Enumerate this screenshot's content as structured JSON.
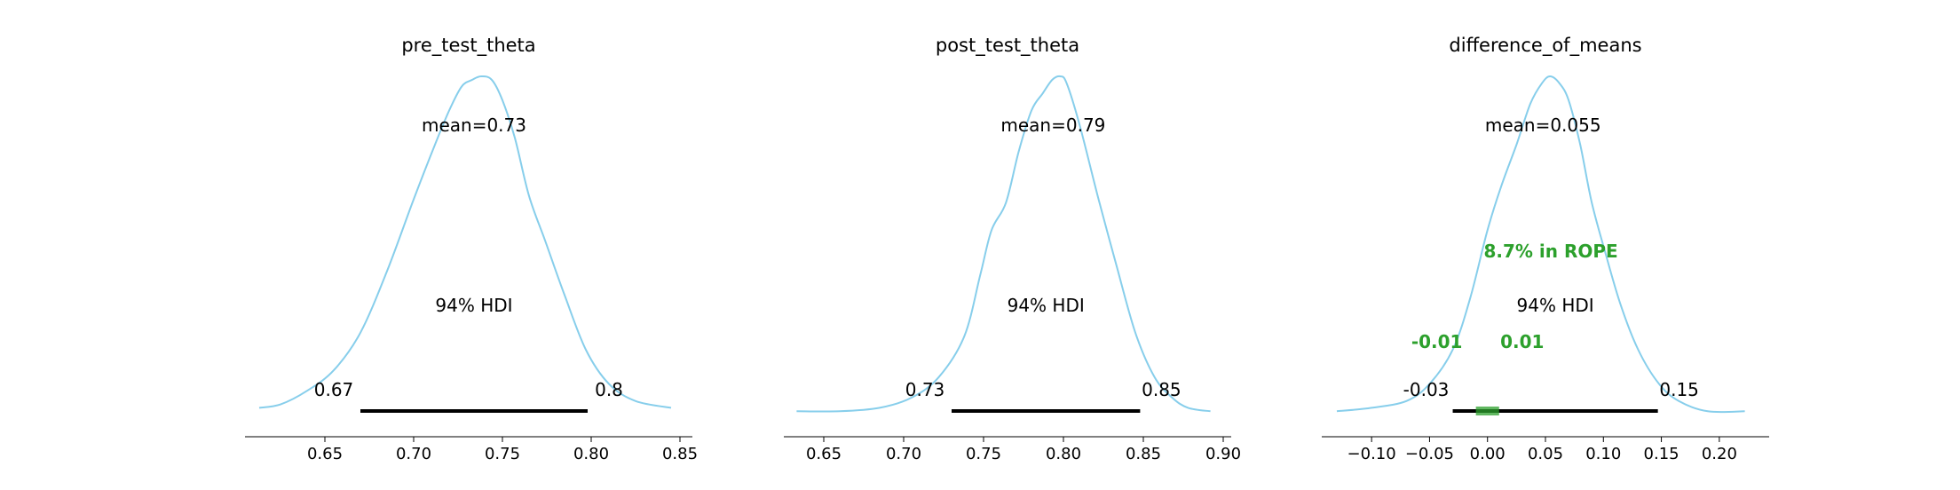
{
  "chart_data": [
    {
      "type": "area",
      "title": "pre_test_theta",
      "xlim": [
        0.605,
        0.857
      ],
      "xticks": [
        0.65,
        0.7,
        0.75,
        0.8,
        0.85
      ],
      "xtick_labels": [
        "0.65",
        "0.70",
        "0.75",
        "0.80",
        "0.85"
      ],
      "mean_label": "mean=0.73",
      "hdi_label": "94% HDI",
      "hdi": [
        0.67,
        0.798
      ],
      "hdi_low_label": "0.67",
      "hdi_high_label": "0.8",
      "color": "#87ceeb",
      "density_points": [
        [
          0.613,
          0.03
        ],
        [
          0.625,
          0.04
        ],
        [
          0.64,
          0.08
        ],
        [
          0.655,
          0.14
        ],
        [
          0.67,
          0.25
        ],
        [
          0.685,
          0.43
        ],
        [
          0.7,
          0.64
        ],
        [
          0.712,
          0.8
        ],
        [
          0.72,
          0.9
        ],
        [
          0.727,
          0.97
        ],
        [
          0.733,
          0.99
        ],
        [
          0.738,
          1.0
        ],
        [
          0.744,
          0.99
        ],
        [
          0.75,
          0.93
        ],
        [
          0.757,
          0.82
        ],
        [
          0.765,
          0.65
        ],
        [
          0.774,
          0.52
        ],
        [
          0.785,
          0.36
        ],
        [
          0.797,
          0.2
        ],
        [
          0.81,
          0.1
        ],
        [
          0.825,
          0.05
        ],
        [
          0.845,
          0.03
        ]
      ]
    },
    {
      "type": "area",
      "title": "post_test_theta",
      "xlim": [
        0.625,
        0.905
      ],
      "xticks": [
        0.65,
        0.7,
        0.75,
        0.8,
        0.85,
        0.9
      ],
      "xtick_labels": [
        "0.65",
        "0.70",
        "0.75",
        "0.80",
        "0.85",
        "0.90"
      ],
      "mean_label": "mean=0.79",
      "hdi_label": "94% HDI",
      "hdi": [
        0.73,
        0.848
      ],
      "hdi_low_label": "0.73",
      "hdi_high_label": "0.85",
      "color": "#87ceeb",
      "density_points": [
        [
          0.633,
          0.02
        ],
        [
          0.66,
          0.02
        ],
        [
          0.685,
          0.03
        ],
        [
          0.705,
          0.06
        ],
        [
          0.722,
          0.12
        ],
        [
          0.738,
          0.24
        ],
        [
          0.748,
          0.42
        ],
        [
          0.755,
          0.55
        ],
        [
          0.764,
          0.63
        ],
        [
          0.772,
          0.78
        ],
        [
          0.78,
          0.9
        ],
        [
          0.787,
          0.95
        ],
        [
          0.793,
          0.99
        ],
        [
          0.798,
          1.0
        ],
        [
          0.802,
          0.98
        ],
        [
          0.81,
          0.86
        ],
        [
          0.822,
          0.64
        ],
        [
          0.833,
          0.45
        ],
        [
          0.845,
          0.25
        ],
        [
          0.857,
          0.12
        ],
        [
          0.868,
          0.06
        ],
        [
          0.878,
          0.03
        ],
        [
          0.892,
          0.02
        ]
      ]
    },
    {
      "type": "area",
      "title": "difference_of_means",
      "xlim": [
        -0.143,
        0.243
      ],
      "xticks": [
        -0.1,
        -0.05,
        0.0,
        0.05,
        0.1,
        0.15,
        0.2
      ],
      "xtick_labels": [
        "−0.10",
        "−0.05",
        "0.00",
        "0.05",
        "0.10",
        "0.15",
        "0.20"
      ],
      "mean_label": "mean=0.055",
      "hdi_label": "94% HDI",
      "hdi": [
        -0.03,
        0.147
      ],
      "hdi_low_label": "-0.03",
      "hdi_high_label": "0.15",
      "rope": [
        -0.01,
        0.01
      ],
      "rope_low_label": "-0.01",
      "rope_high_label": "0.01",
      "rope_text": "8.7% in ROPE",
      "color": "#87ceeb",
      "rope_color": "#2ca02c",
      "density_points": [
        [
          -0.13,
          0.02
        ],
        [
          -0.1,
          0.03
        ],
        [
          -0.07,
          0.05
        ],
        [
          -0.05,
          0.1
        ],
        [
          -0.03,
          0.2
        ],
        [
          -0.015,
          0.35
        ],
        [
          0.0,
          0.55
        ],
        [
          0.012,
          0.68
        ],
        [
          0.025,
          0.8
        ],
        [
          0.037,
          0.92
        ],
        [
          0.047,
          0.98
        ],
        [
          0.054,
          1.0
        ],
        [
          0.062,
          0.98
        ],
        [
          0.07,
          0.93
        ],
        [
          0.08,
          0.8
        ],
        [
          0.09,
          0.63
        ],
        [
          0.102,
          0.48
        ],
        [
          0.115,
          0.33
        ],
        [
          0.13,
          0.2
        ],
        [
          0.148,
          0.1
        ],
        [
          0.165,
          0.05
        ],
        [
          0.19,
          0.02
        ],
        [
          0.222,
          0.02
        ]
      ]
    }
  ]
}
